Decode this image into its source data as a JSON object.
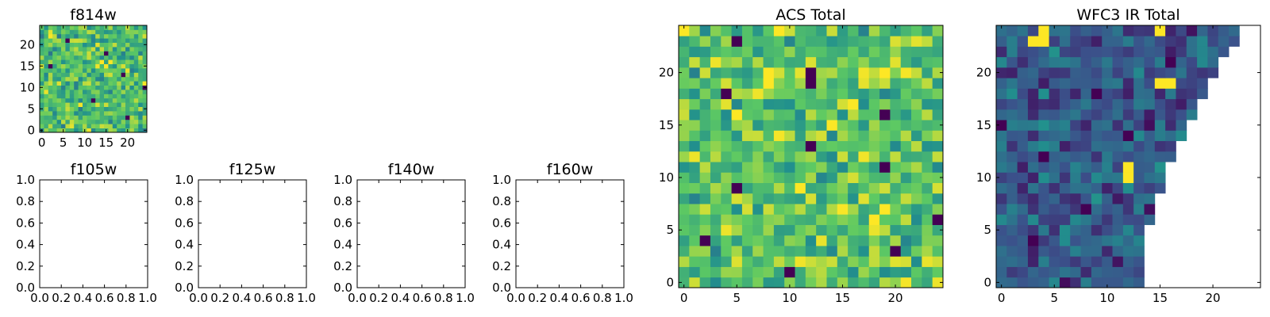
{
  "figure": {
    "colormap": [
      "#440154",
      "#3b528b",
      "#21908d",
      "#5dc963",
      "#fde725"
    ]
  },
  "chart_data": [
    {
      "id": "f814w",
      "type": "heatmap",
      "title": "f814w",
      "rows": 25,
      "cols": 25,
      "xlim": [
        -0.5,
        24.5
      ],
      "ylim": [
        -0.5,
        24.5
      ],
      "xticks": [
        0,
        5,
        10,
        15,
        20
      ],
      "yticks": [
        0,
        5,
        10,
        15,
        20
      ],
      "value_range": [
        0,
        1
      ],
      "pattern": "noise",
      "mean": 0.7,
      "spread": 0.2,
      "low_pixels": [
        [
          3,
          20
        ],
        [
          7,
          12
        ],
        [
          13,
          19
        ],
        [
          18,
          15
        ],
        [
          21,
          6
        ],
        [
          10,
          24
        ],
        [
          15,
          2
        ]
      ],
      "high_pixels": []
    },
    {
      "id": "f105w",
      "type": "empty",
      "title": "f105w",
      "xlim": [
        0,
        1
      ],
      "ylim": [
        0,
        1
      ],
      "xticks": [
        "0.0",
        "0.2",
        "0.4",
        "0.6",
        "0.8",
        "1.0"
      ],
      "yticks": [
        "0.0",
        "0.2",
        "0.4",
        "0.6",
        "0.8",
        "1.0"
      ]
    },
    {
      "id": "f125w",
      "type": "empty",
      "title": "f125w",
      "xlim": [
        0,
        1
      ],
      "ylim": [
        0,
        1
      ],
      "xticks": [
        "0.0",
        "0.2",
        "0.4",
        "0.6",
        "0.8",
        "1.0"
      ],
      "yticks": [
        "0.0",
        "0.2",
        "0.4",
        "0.6",
        "0.8",
        "1.0"
      ]
    },
    {
      "id": "f140w",
      "type": "empty",
      "title": "f140w",
      "xlim": [
        0,
        1
      ],
      "ylim": [
        0,
        1
      ],
      "xticks": [
        "0.0",
        "0.2",
        "0.4",
        "0.6",
        "0.8",
        "1.0"
      ],
      "yticks": [
        "0.0",
        "0.2",
        "0.4",
        "0.6",
        "0.8",
        "1.0"
      ]
    },
    {
      "id": "f160w",
      "type": "empty",
      "title": "f160w",
      "xlim": [
        0,
        1
      ],
      "ylim": [
        0,
        1
      ],
      "xticks": [
        "0.0",
        "0.2",
        "0.4",
        "0.6",
        "0.8",
        "1.0"
      ],
      "yticks": [
        "0.0",
        "0.2",
        "0.4",
        "0.6",
        "0.8",
        "1.0"
      ]
    },
    {
      "id": "acs-total",
      "type": "heatmap",
      "title": "ACS Total",
      "rows": 25,
      "cols": 25,
      "xlim": [
        -0.5,
        24.5
      ],
      "ylim": [
        -0.5,
        24.5
      ],
      "xticks": [
        0,
        5,
        10,
        15,
        20
      ],
      "yticks": [
        0,
        5,
        10,
        15,
        20
      ],
      "value_range": [
        0,
        1
      ],
      "pattern": "noise",
      "mean": 0.72,
      "spread": 0.2,
      "low_pixels": [
        [
          1,
          10
        ],
        [
          3,
          20
        ],
        [
          4,
          2
        ],
        [
          6,
          24
        ],
        [
          9,
          5
        ],
        [
          11,
          19
        ],
        [
          13,
          12
        ],
        [
          16,
          19
        ],
        [
          18,
          4
        ],
        [
          19,
          12
        ],
        [
          20,
          12
        ],
        [
          23,
          5
        ]
      ],
      "high_pixels": [
        [
          19,
          8
        ],
        [
          20,
          8
        ],
        [
          24,
          9
        ],
        [
          6,
          18
        ],
        [
          7,
          19
        ],
        [
          16,
          5
        ],
        [
          24,
          0
        ]
      ]
    },
    {
      "id": "wfc3-ir-total",
      "type": "heatmap",
      "title": "WFC3 IR Total",
      "rows": 25,
      "cols": 25,
      "xlim": [
        -0.5,
        24.5
      ],
      "ylim": [
        -0.5,
        24.5
      ],
      "xticks": [
        0,
        5,
        10,
        15,
        20
      ],
      "yticks": [
        0,
        5,
        10,
        15,
        20
      ],
      "value_range": [
        0,
        1
      ],
      "pattern": "noise",
      "mean": 0.28,
      "spread": 0.16,
      "valid_row_lengths": [
        14,
        14,
        14,
        14,
        14,
        14,
        15,
        15,
        15,
        16,
        16,
        16,
        17,
        17,
        18,
        18,
        19,
        19,
        20,
        20,
        21,
        21,
        22,
        23,
        23
      ],
      "low_pixels": [
        [
          15,
          0
        ],
        [
          14,
          12
        ],
        [
          18,
          9
        ],
        [
          21,
          16
        ],
        [
          4,
          3
        ],
        [
          7,
          8
        ],
        [
          12,
          4
        ]
      ],
      "high_pixels": [
        [
          24,
          4
        ],
        [
          23,
          4
        ],
        [
          19,
          15
        ],
        [
          19,
          16
        ],
        [
          11,
          12
        ],
        [
          10,
          12
        ],
        [
          24,
          15
        ],
        [
          23,
          3
        ]
      ]
    }
  ]
}
